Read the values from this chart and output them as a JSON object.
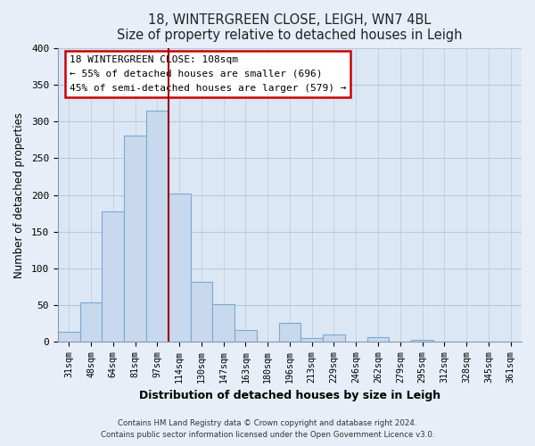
{
  "title": "18, WINTERGREEN CLOSE, LEIGH, WN7 4BL",
  "subtitle": "Size of property relative to detached houses in Leigh",
  "xlabel": "Distribution of detached houses by size in Leigh",
  "ylabel": "Number of detached properties",
  "categories": [
    "31sqm",
    "48sqm",
    "64sqm",
    "81sqm",
    "97sqm",
    "114sqm",
    "130sqm",
    "147sqm",
    "163sqm",
    "180sqm",
    "196sqm",
    "213sqm",
    "229sqm",
    "246sqm",
    "262sqm",
    "279sqm",
    "295sqm",
    "312sqm",
    "328sqm",
    "345sqm",
    "361sqm"
  ],
  "values": [
    13,
    53,
    177,
    281,
    315,
    202,
    81,
    51,
    16,
    0,
    25,
    5,
    10,
    0,
    6,
    0,
    2,
    0,
    0,
    0,
    0
  ],
  "bar_color": "#c8d8ed",
  "bar_edge_color": "#7aaacf",
  "vline_color": "#990000",
  "annotation_lines": [
    "18 WINTERGREEN CLOSE: 108sqm",
    "← 55% of detached houses are smaller (696)",
    "45% of semi-detached houses are larger (579) →"
  ],
  "ylim": [
    0,
    400
  ],
  "yticks": [
    0,
    50,
    100,
    150,
    200,
    250,
    300,
    350,
    400
  ],
  "footer1": "Contains HM Land Registry data © Crown copyright and database right 2024.",
  "footer2": "Contains public sector information licensed under the Open Government Licence v3.0.",
  "bg_color": "#e8eef7",
  "plot_bg_color": "#dce7f5",
  "grid_color": "#b8c8dd",
  "title_color": "#222222"
}
